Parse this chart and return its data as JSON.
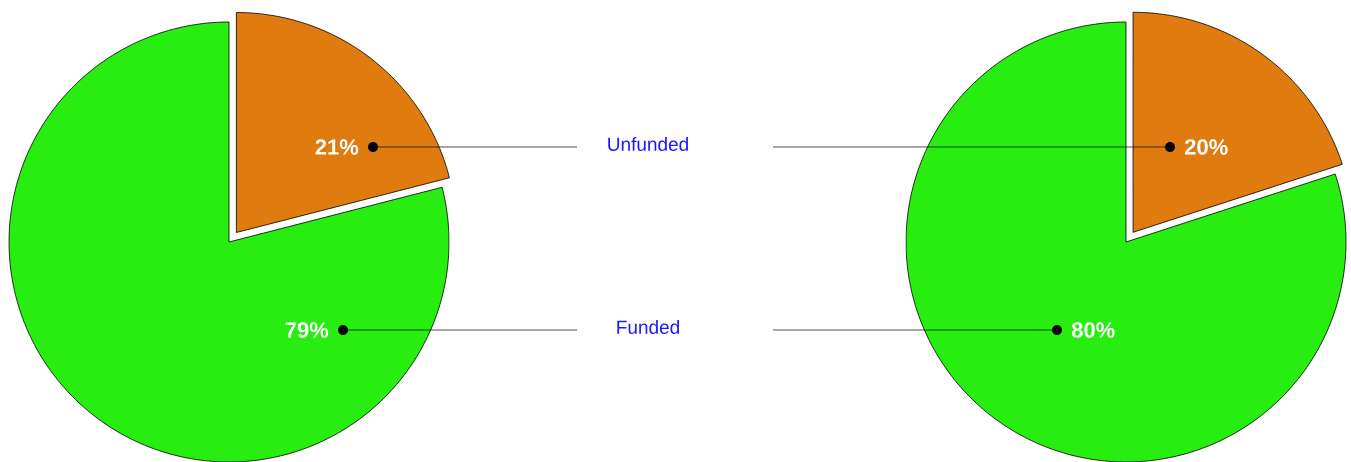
{
  "chart_data": [
    {
      "type": "pie",
      "categories": [
        "Unfunded",
        "Funded"
      ],
      "values": [
        21,
        79
      ],
      "value_labels": [
        "21%",
        "79%"
      ],
      "colors": [
        "#e07b10",
        "#27ee10"
      ]
    },
    {
      "type": "pie",
      "categories": [
        null,
        null
      ],
      "values": [
        20,
        80
      ],
      "value_labels": [
        "20%",
        "80%"
      ],
      "colors": [
        "#e07b10",
        "#27ee10"
      ]
    }
  ]
}
